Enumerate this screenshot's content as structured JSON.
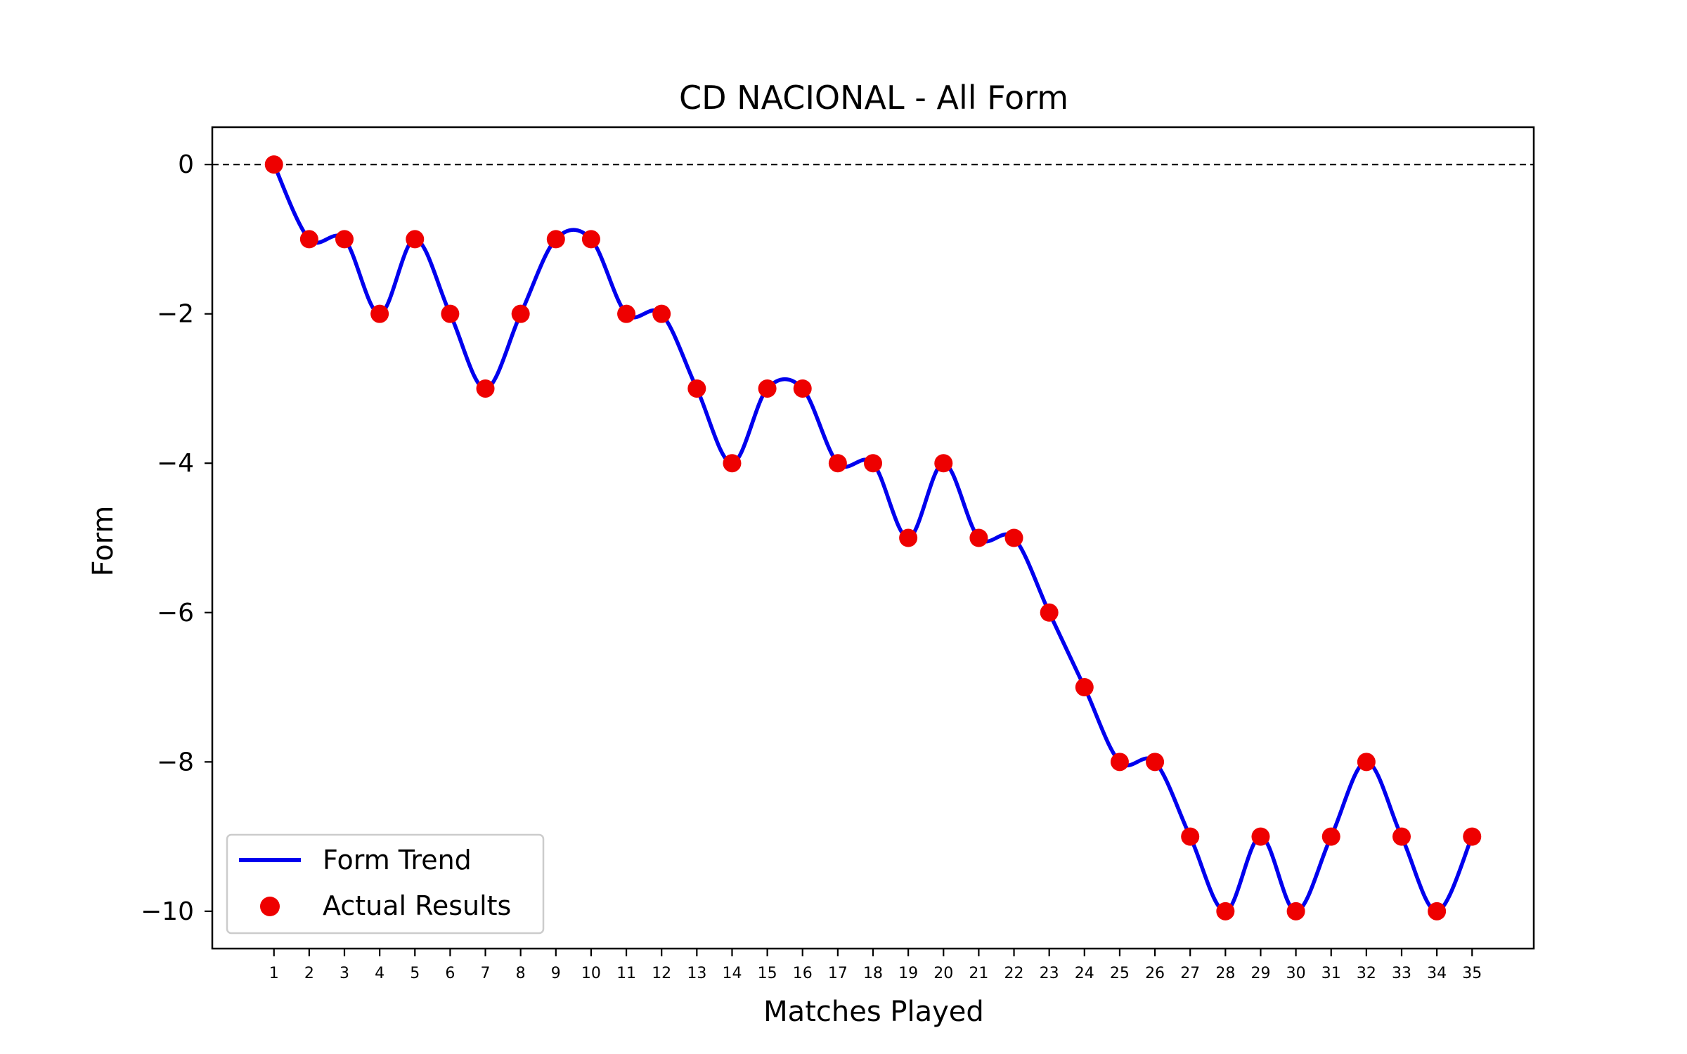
{
  "chart_data": {
    "type": "line",
    "title": "CD NACIONAL - All Form",
    "xlabel": "Matches Played",
    "ylabel": "Form",
    "x": [
      1,
      2,
      3,
      4,
      5,
      6,
      7,
      8,
      9,
      10,
      11,
      12,
      13,
      14,
      15,
      16,
      17,
      18,
      19,
      20,
      21,
      22,
      23,
      24,
      25,
      26,
      27,
      28,
      29,
      30,
      31,
      32,
      33,
      34,
      35
    ],
    "x_tick_labels": [
      "1",
      "2",
      "3",
      "4",
      "5",
      "6",
      "7",
      "8",
      "9",
      "10",
      "11",
      "12",
      "13",
      "14",
      "15",
      "16",
      "17",
      "18",
      "19",
      "20",
      "21",
      "22",
      "23",
      "24",
      "25",
      "26",
      "27",
      "28",
      "29",
      "30",
      "31",
      "32",
      "33",
      "34",
      "35"
    ],
    "y_ticks": [
      0,
      -2,
      -4,
      -6,
      -8,
      -10
    ],
    "y_tick_labels": [
      "0",
      "−2",
      "−4",
      "−6",
      "−8",
      "−10"
    ],
    "xlim": [
      -0.75,
      36.75
    ],
    "ylim": [
      -10.5,
      0.5
    ],
    "reference_line": {
      "y": 0,
      "style": "dashed",
      "color": "#000000"
    },
    "series": [
      {
        "name": "Form Trend",
        "kind": "smoothed-line",
        "color": "#0000ee",
        "values": [
          0,
          -1,
          -1,
          -2,
          -1,
          -2,
          -3,
          -2,
          -1,
          -1,
          -2,
          -2,
          -3,
          -4,
          -3,
          -3,
          -4,
          -4,
          -5,
          -4,
          -5,
          -5,
          -6,
          -7,
          -8,
          -8,
          -9,
          -10,
          -9,
          -10,
          -9,
          -8,
          -9,
          -10,
          -9
        ]
      },
      {
        "name": "Actual Results",
        "kind": "scatter",
        "color": "#ee0000",
        "values": [
          0,
          -1,
          -1,
          -2,
          -1,
          -2,
          -3,
          -2,
          -1,
          -1,
          -2,
          -2,
          -3,
          -4,
          -3,
          -3,
          -4,
          -4,
          -5,
          -4,
          -5,
          -5,
          -6,
          -7,
          -8,
          -8,
          -9,
          -10,
          -9,
          -10,
          -9,
          -8,
          -9,
          -10,
          -9
        ]
      }
    ],
    "legend": {
      "placement": "bottom-left"
    },
    "grid": false
  }
}
